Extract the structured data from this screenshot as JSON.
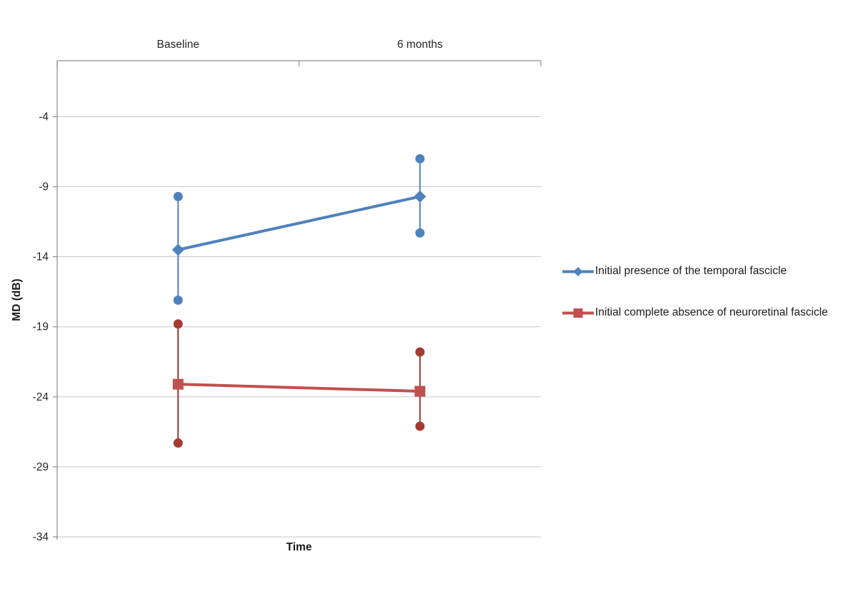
{
  "chart_data": {
    "type": "line",
    "title": "",
    "categories": [
      "Baseline",
      "6 months"
    ],
    "xlabel": "Time",
    "ylabel": "MD (dB)",
    "ylim": [
      -34,
      0
    ],
    "yticks": [
      -4,
      -9,
      -14,
      -19,
      -24,
      -29,
      -34
    ],
    "grid": true,
    "legend_position": "right",
    "colors": {
      "grid": "#C6C6C6",
      "axis": "#8C8C8C",
      "text": "#262626"
    },
    "series": [
      {
        "name": "Initial presence of the temporal fascicle",
        "marker": "diamond",
        "color": "#4F81BD",
        "error_line_color": "#4F81BD",
        "error_cap_color": "#4F81BD",
        "values": [
          -13.5,
          -9.7
        ],
        "error_upper": [
          -9.7,
          -7.0
        ],
        "error_lower": [
          -17.1,
          -12.3
        ]
      },
      {
        "name": "Initial complete absence of neuroretinal fascicle",
        "marker": "square",
        "color": "#C0504D",
        "error_line_color": "#8E3B34",
        "error_cap_color": "#A33B32",
        "values": [
          -23.1,
          -23.6
        ],
        "error_upper": [
          -18.8,
          -20.8
        ],
        "error_lower": [
          -27.3,
          -26.1
        ]
      }
    ]
  }
}
